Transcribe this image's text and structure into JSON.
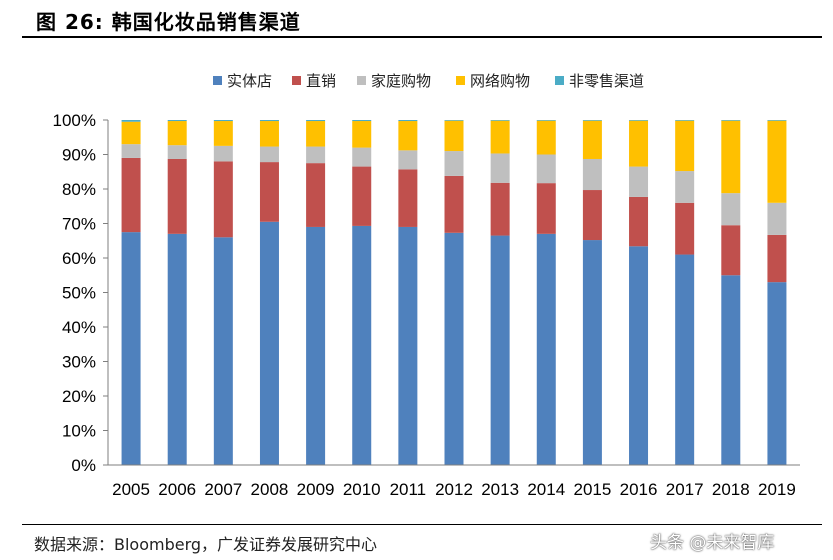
{
  "figure": {
    "title": "图 26:  韩国化妆品销售渠道",
    "source": "数据来源：Bloomberg，广发证券发展研究中心",
    "watermark": "头条 @未来智库"
  },
  "chart_data": {
    "type": "bar",
    "stacked": true,
    "title": "",
    "xlabel": "",
    "ylabel": "",
    "ylim": [
      0,
      100
    ],
    "y_ticks": [
      0,
      10,
      20,
      30,
      40,
      50,
      60,
      70,
      80,
      90,
      100
    ],
    "y_tick_suffix": "%",
    "legend_position": "top",
    "categories": [
      "2005",
      "2006",
      "2007",
      "2008",
      "2009",
      "2010",
      "2011",
      "2012",
      "2013",
      "2014",
      "2015",
      "2016",
      "2017",
      "2018",
      "2019"
    ],
    "series": [
      {
        "name": "实体店",
        "color": "#4F81BD",
        "values": [
          67.5,
          67,
          66,
          70.5,
          69,
          69.3,
          69,
          67.3,
          66.5,
          67,
          65.2,
          63.4,
          61,
          55,
          53
        ]
      },
      {
        "name": "直销",
        "color": "#C0504D",
        "values": [
          21.5,
          21.7,
          22,
          17.3,
          18.5,
          17.2,
          16.7,
          16.5,
          15.3,
          14.7,
          14.5,
          14.3,
          15,
          14.5,
          13.7
        ]
      },
      {
        "name": "家庭购物",
        "color": "#BFBFBF",
        "values": [
          4,
          4,
          4.5,
          4.5,
          4.8,
          5.5,
          5.5,
          7.2,
          8.5,
          8.3,
          9,
          8.8,
          9.2,
          9.3,
          9.3
        ]
      },
      {
        "name": "网络购物",
        "color": "#FFC000",
        "values": [
          6.5,
          7,
          7.2,
          7.4,
          7.4,
          7.7,
          8.5,
          8.8,
          9.5,
          9.8,
          11.1,
          13.3,
          14.6,
          21,
          23.8
        ]
      },
      {
        "name": "非零售渠道",
        "color": "#4BACC6",
        "values": [
          0.5,
          0.3,
          0.3,
          0.3,
          0.3,
          0.3,
          0.3,
          0.2,
          0.2,
          0.2,
          0.2,
          0.2,
          0.2,
          0.2,
          0.2
        ]
      }
    ]
  }
}
